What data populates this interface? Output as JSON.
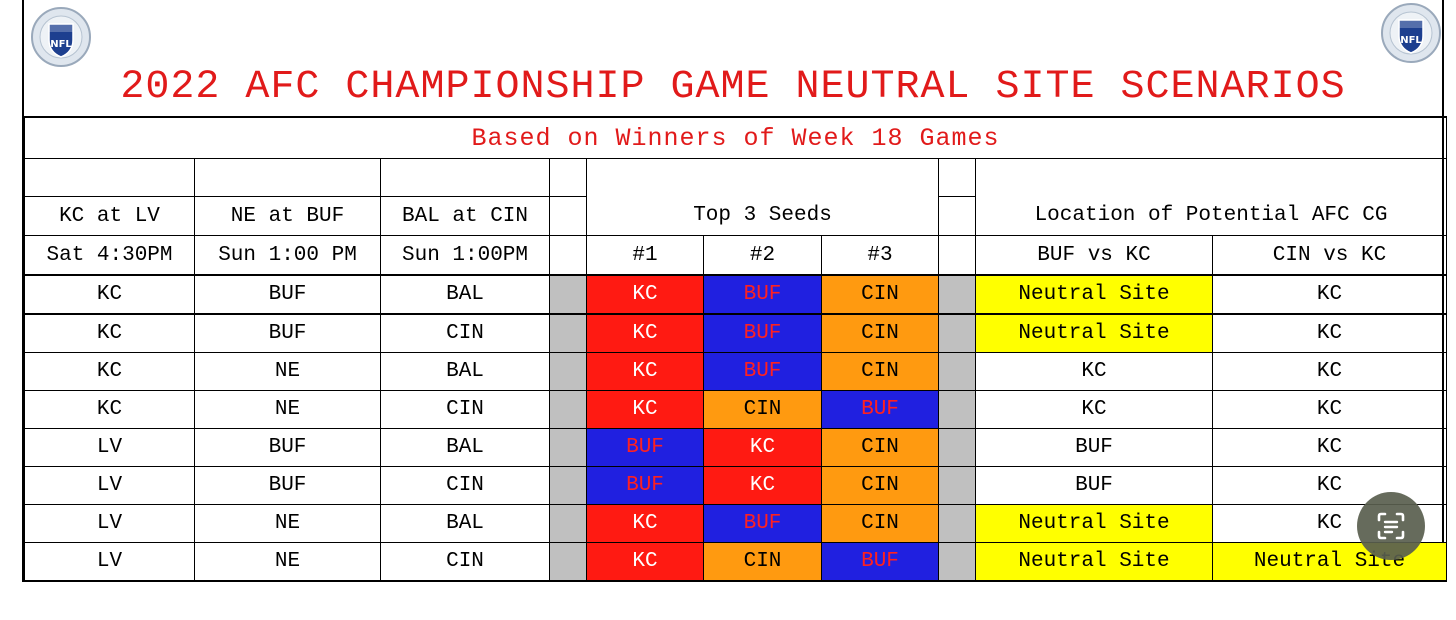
{
  "title": "2022 AFC CHAMPIONSHIP GAME NEUTRAL SITE SCENARIOS",
  "subtitle": "Based on Winners of Week 18 Games",
  "logo_left": "NFL",
  "logo_right": "NFL",
  "headers": {
    "game1": "KC at LV",
    "game2": "NE at BUF",
    "game3": "BAL at CIN",
    "top3": "Top 3 Seeds",
    "location": "Location of Potential AFC CG"
  },
  "times": {
    "game1": "Sat 4:30PM",
    "game2": "Sun 1:00 PM",
    "game3": "Sun 1:00PM",
    "seed1": "#1",
    "seed2": "#2",
    "seed3": "#3",
    "matchup1": "BUF vs KC",
    "matchup2": "CIN vs KC"
  },
  "rows": [
    {
      "g1": "KC",
      "g2": "BUF",
      "g3": "BAL",
      "s1": "KC",
      "s2": "BUF",
      "s3": "CIN",
      "l1": "Neutral Site",
      "l2": "KC"
    },
    {
      "g1": "KC",
      "g2": "BUF",
      "g3": "CIN",
      "s1": "KC",
      "s2": "BUF",
      "s3": "CIN",
      "l1": "Neutral Site",
      "l2": "KC"
    },
    {
      "g1": "KC",
      "g2": "NE",
      "g3": "BAL",
      "s1": "KC",
      "s2": "BUF",
      "s3": "CIN",
      "l1": "KC",
      "l2": "KC"
    },
    {
      "g1": "KC",
      "g2": "NE",
      "g3": "CIN",
      "s1": "KC",
      "s2": "CIN",
      "s3": "BUF",
      "l1": "KC",
      "l2": "KC"
    },
    {
      "g1": "LV",
      "g2": "BUF",
      "g3": "BAL",
      "s1": "BUF",
      "s2": "KC",
      "s3": "CIN",
      "l1": "BUF",
      "l2": "KC"
    },
    {
      "g1": "LV",
      "g2": "BUF",
      "g3": "CIN",
      "s1": "BUF",
      "s2": "KC",
      "s3": "CIN",
      "l1": "BUF",
      "l2": "KC"
    },
    {
      "g1": "LV",
      "g2": "NE",
      "g3": "BAL",
      "s1": "KC",
      "s2": "BUF",
      "s3": "CIN",
      "l1": "Neutral Site",
      "l2": "KC"
    },
    {
      "g1": "LV",
      "g2": "NE",
      "g3": "CIN",
      "s1": "KC",
      "s2": "CIN",
      "s3": "BUF",
      "l1": "Neutral Site",
      "l2": "Neutral Site"
    }
  ],
  "colors": {
    "title": "#e11a1a",
    "kc": "#ff1a12",
    "buf": "#2020e0",
    "cin": "#ff9a10",
    "neutral": "#ffff00",
    "separator": "#c0c0c0"
  },
  "icons": {
    "logo": "nfl-shield-icon",
    "lens": "visual-lookup-icon"
  }
}
